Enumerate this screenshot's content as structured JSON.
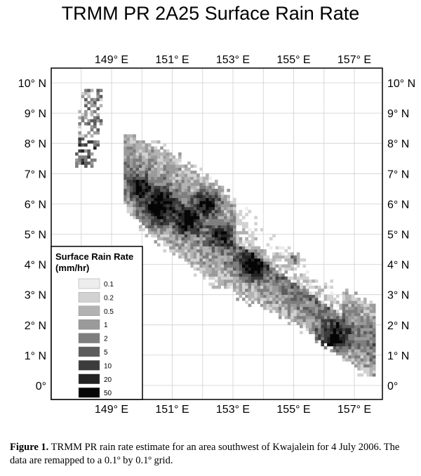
{
  "title": "TRMM PR 2A25 Surface Rain Rate",
  "map": {
    "lon_ticks": [
      "149° E",
      "151° E",
      "153° E",
      "155° E",
      "157° E"
    ],
    "lat_ticks": [
      "10° N",
      "9° N",
      "8° N",
      "7° N",
      "6° N",
      "5° N",
      "4° N",
      "3° N",
      "2° N",
      "1° N",
      "0°"
    ],
    "grid": true
  },
  "legend": {
    "title_line1": "Surface Rain Rate",
    "title_line2": "(mm/hr)",
    "items": [
      {
        "label": "0.1",
        "color": "#ededed"
      },
      {
        "label": "0.2",
        "color": "#d2d2d2"
      },
      {
        "label": "0.5",
        "color": "#b2b2b2"
      },
      {
        "label": "1",
        "color": "#9a9a9a"
      },
      {
        "label": "2",
        "color": "#7e7e7e"
      },
      {
        "label": "5",
        "color": "#5c5c5c"
      },
      {
        "label": "10",
        "color": "#3c3c3c"
      },
      {
        "label": "20",
        "color": "#232323"
      },
      {
        "label": "50",
        "color": "#050505"
      }
    ]
  },
  "caption": {
    "label": "Figure 1.",
    "text": " TRMM PR rain rate estimate for an area southwest of Kwajalein for 4 July 2006. The data are remapped to a 0.1º by 0.1º grid."
  }
}
